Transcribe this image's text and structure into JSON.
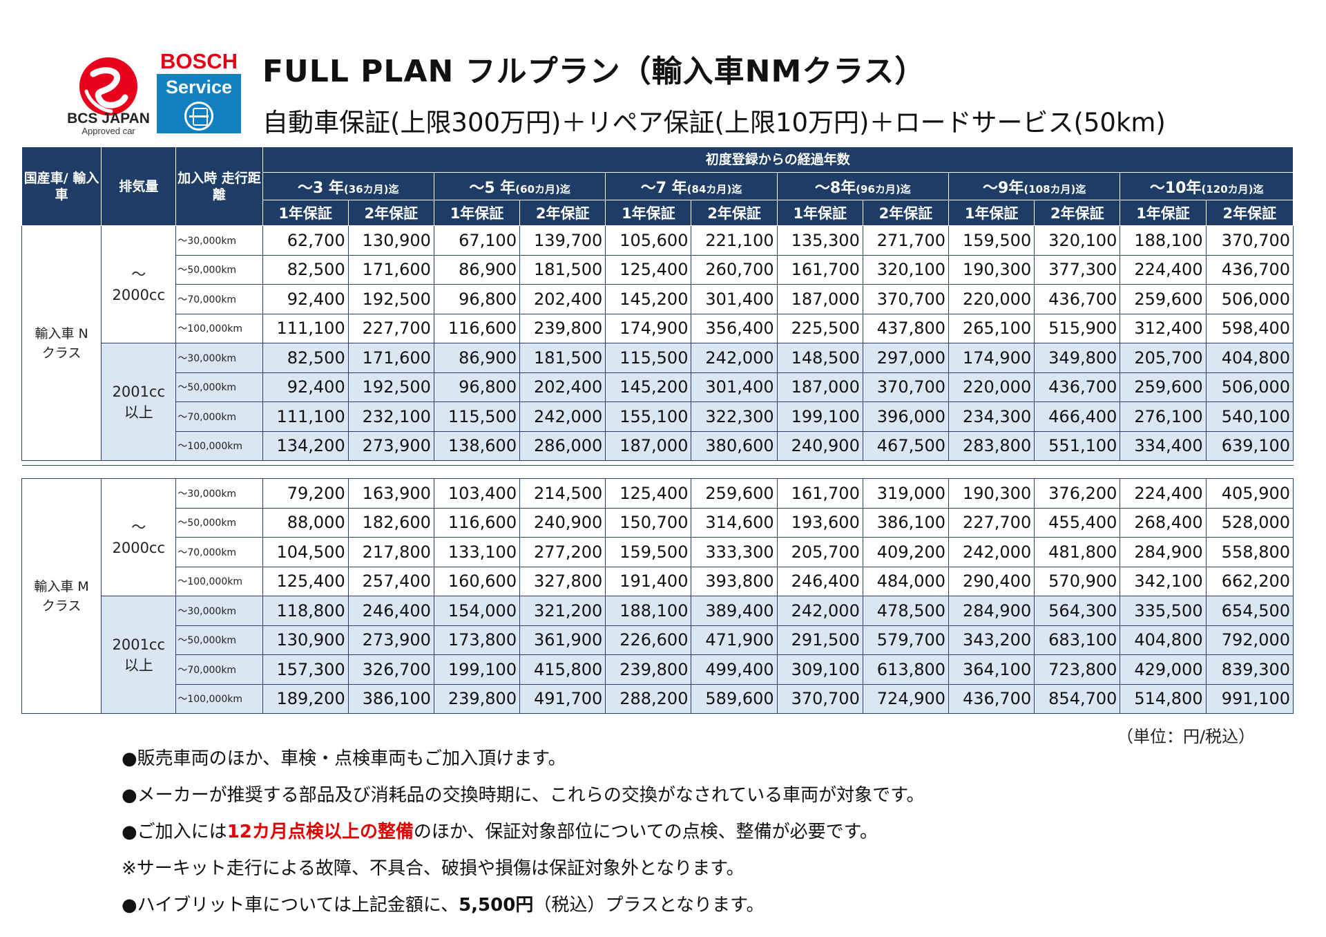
{
  "header": {
    "bcs_name": "BCS JAPAN",
    "bcs_sub": "Approved car",
    "bosch_top": "BOSCH",
    "bosch_service": "Service",
    "title": "FULL PLAN フルプラン（輸入車NMクラス）",
    "subtitle": "自動車保証(上限300万円)＋リペア保証(上限10万円)＋ロードサービス(50km)"
  },
  "table": {
    "col_type": "国産車/ 輸入車",
    "col_cc": "排気量",
    "col_km": "加入時 走行距離",
    "group_header": "初度登録からの経過年数",
    "periods": [
      {
        "main": "～3 年",
        "sub": "(36カ月)迄"
      },
      {
        "main": "～5 年",
        "sub": "(60カ月)迄"
      },
      {
        "main": "～7 年",
        "sub": "(84カ月)迄"
      },
      {
        "main": "～8年",
        "sub": "(96カ月)迄"
      },
      {
        "main": "～9年",
        "sub": "(108カ月)迄"
      },
      {
        "main": "～10年",
        "sub": "(120カ月)迄"
      }
    ],
    "warranty_1": "1年保証",
    "warranty_2": "2年保証",
    "km_labels": [
      "～30,000km",
      "～50,000km",
      "～70,000km",
      "～100,000km"
    ],
    "blocks": [
      {
        "class_label": "輸入車 Nクラス",
        "groups": [
          {
            "cc": "～ 2000cc",
            "rows": [
              [
                "62,700",
                "130,900",
                "67,100",
                "139,700",
                "105,600",
                "221,100",
                "135,300",
                "271,700",
                "159,500",
                "320,100",
                "188,100",
                "370,700"
              ],
              [
                "82,500",
                "171,600",
                "86,900",
                "181,500",
                "125,400",
                "260,700",
                "161,700",
                "320,100",
                "190,300",
                "377,300",
                "224,400",
                "436,700"
              ],
              [
                "92,400",
                "192,500",
                "96,800",
                "202,400",
                "145,200",
                "301,400",
                "187,000",
                "370,700",
                "220,000",
                "436,700",
                "259,600",
                "506,000"
              ],
              [
                "111,100",
                "227,700",
                "116,600",
                "239,800",
                "174,900",
                "356,400",
                "225,500",
                "437,800",
                "265,100",
                "515,900",
                "312,400",
                "598,400"
              ]
            ]
          },
          {
            "cc": "2001cc 以上",
            "rows": [
              [
                "82,500",
                "171,600",
                "86,900",
                "181,500",
                "115,500",
                "242,000",
                "148,500",
                "297,000",
                "174,900",
                "349,800",
                "205,700",
                "404,800"
              ],
              [
                "92,400",
                "192,500",
                "96,800",
                "202,400",
                "145,200",
                "301,400",
                "187,000",
                "370,700",
                "220,000",
                "436,700",
                "259,600",
                "506,000"
              ],
              [
                "111,100",
                "232,100",
                "115,500",
                "242,000",
                "155,100",
                "322,300",
                "199,100",
                "396,000",
                "234,300",
                "466,400",
                "276,100",
                "540,100"
              ],
              [
                "134,200",
                "273,900",
                "138,600",
                "286,000",
                "187,000",
                "380,600",
                "240,900",
                "467,500",
                "283,800",
                "551,100",
                "334,400",
                "639,100"
              ]
            ]
          }
        ]
      },
      {
        "class_label": "輸入車 Mクラス",
        "groups": [
          {
            "cc": "～ 2000cc",
            "rows": [
              [
                "79,200",
                "163,900",
                "103,400",
                "214,500",
                "125,400",
                "259,600",
                "161,700",
                "319,000",
                "190,300",
                "376,200",
                "224,400",
                "405,900"
              ],
              [
                "88,000",
                "182,600",
                "116,600",
                "240,900",
                "150,700",
                "314,600",
                "193,600",
                "386,100",
                "227,700",
                "455,400",
                "268,400",
                "528,000"
              ],
              [
                "104,500",
                "217,800",
                "133,100",
                "277,200",
                "159,500",
                "333,300",
                "205,700",
                "409,200",
                "242,000",
                "481,800",
                "284,900",
                "558,800"
              ],
              [
                "125,400",
                "257,400",
                "160,600",
                "327,800",
                "191,400",
                "393,800",
                "246,400",
                "484,000",
                "290,400",
                "570,900",
                "342,100",
                "662,200"
              ]
            ]
          },
          {
            "cc": "2001cc 以上",
            "rows": [
              [
                "118,800",
                "246,400",
                "154,000",
                "321,200",
                "188,100",
                "389,400",
                "242,000",
                "478,500",
                "284,900",
                "564,300",
                "335,500",
                "654,500"
              ],
              [
                "130,900",
                "273,900",
                "173,800",
                "361,900",
                "226,600",
                "471,900",
                "291,500",
                "579,700",
                "343,200",
                "683,100",
                "404,800",
                "792,000"
              ],
              [
                "157,300",
                "326,700",
                "199,100",
                "415,800",
                "239,800",
                "499,400",
                "309,100",
                "613,800",
                "364,100",
                "723,800",
                "429,000",
                "839,300"
              ],
              [
                "189,200",
                "386,100",
                "239,800",
                "491,700",
                "288,200",
                "589,600",
                "370,700",
                "724,900",
                "436,700",
                "854,700",
                "514,800",
                "991,100"
              ]
            ]
          }
        ]
      }
    ],
    "unit": "（単位：円/税込）"
  },
  "notes": [
    {
      "parts": [
        {
          "t": "●販売車両のほか、車検・点検車両もご加入頂けます。",
          "s": ""
        }
      ]
    },
    {
      "parts": [
        {
          "t": "●メーカーが推奨する部品及び消耗品の交換時期に、これらの交換がなされている車両が対象です。",
          "s": ""
        }
      ]
    },
    {
      "parts": [
        {
          "t": "●ご加入には",
          "s": ""
        },
        {
          "t": "12カ月点検以上の整備",
          "s": "red"
        },
        {
          "t": "のほか、保証対象部位についての点検、整備が必要です。",
          "s": ""
        }
      ]
    },
    {
      "parts": [
        {
          "t": "※サーキット走行による故障、不具合、破損や損傷は保証対象外となります。",
          "s": ""
        }
      ]
    },
    {
      "parts": [
        {
          "t": "●ハイブリット車については上記金額に、",
          "s": ""
        },
        {
          "t": "5,500円",
          "s": "bold"
        },
        {
          "t": "（税込）プラスとなります。",
          "s": ""
        }
      ]
    }
  ],
  "colors": {
    "header_bg": "#1f3c66",
    "row_blue": "#dae6f2",
    "accent_red": "#e00000",
    "bosch_blue": "#1380c2",
    "bosch_red": "#e30016"
  },
  "icons": [
    "bcs-japan-logo",
    "bosch-service-logo"
  ]
}
